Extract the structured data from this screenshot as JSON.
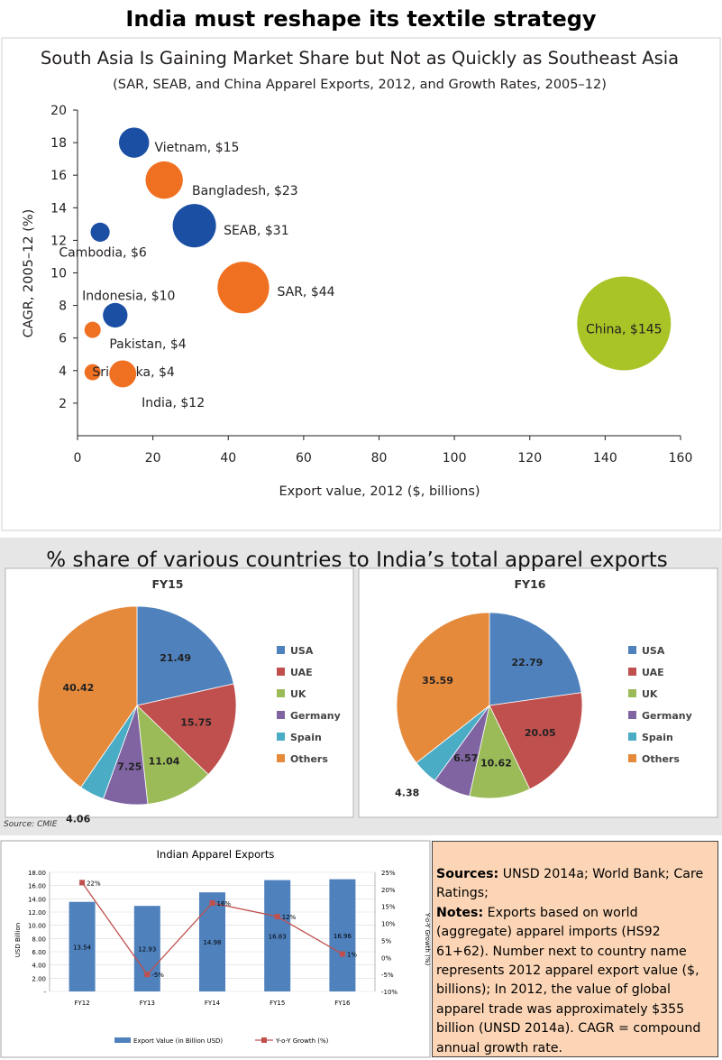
{
  "headline": "India must reshape its textile strategy",
  "chart_data": [
    {
      "type": "scatter",
      "title": "South Asia Is Gaining Market Share but Not as Quickly as Southeast Asia",
      "subtitle": "(SAR, SEAB, and China Apparel Exports, 2012, and Growth Rates, 2005–12)",
      "xlabel": "Export value, 2012 ($, billions)",
      "ylabel": "CAGR, 2005–12 (%)",
      "xlim": [
        0,
        160
      ],
      "ylim": [
        0,
        20
      ],
      "xticks": [
        "0",
        "20",
        "40",
        "60",
        "80",
        "100",
        "120",
        "140",
        "160"
      ],
      "yticks": [
        "2",
        "4",
        "6",
        "8",
        "10",
        "12",
        "14",
        "16",
        "18",
        "20"
      ],
      "points": [
        {
          "label": "Vietnam, $15",
          "x": 15,
          "y": 18.0,
          "color": "#1a4fa3"
        },
        {
          "label": "Bangladesh, $23",
          "x": 23,
          "y": 15.7,
          "color": "#f07022"
        },
        {
          "label": "SEAB, $31",
          "x": 31,
          "y": 12.9,
          "color": "#1a4fa3"
        },
        {
          "label": "Cambodia, $6",
          "x": 6,
          "y": 12.5,
          "color": "#1a4fa3"
        },
        {
          "label": "SAR, $44",
          "x": 44,
          "y": 9.1,
          "color": "#f07022"
        },
        {
          "label": "Indonesia, $10",
          "x": 10,
          "y": 7.4,
          "color": "#1a4fa3"
        },
        {
          "label": "Pakistan, $4",
          "x": 4,
          "y": 6.5,
          "color": "#f07022"
        },
        {
          "label": "Sri Lanka, $4",
          "x": 4,
          "y": 3.9,
          "color": "#f07022"
        },
        {
          "label": "India, $12",
          "x": 12,
          "y": 3.8,
          "color": "#f07022"
        },
        {
          "label": "China, $145",
          "x": 145,
          "y": 6.9,
          "color": "#a9c426"
        }
      ]
    },
    {
      "type": "pie",
      "panel_title": "% share of various countries to India’s total apparel exports",
      "source": "Source: CMIE",
      "legend": [
        "USA",
        "UAE",
        "UK",
        "Germany",
        "Spain",
        "Others"
      ],
      "colors": [
        "#4f81bd",
        "#c0504d",
        "#9bbb59",
        "#8064a2",
        "#4bacc6",
        "#e5893b"
      ],
      "pies": [
        {
          "title": "FY15",
          "values": [
            21.49,
            15.75,
            11.04,
            7.25,
            4.06,
            40.42
          ],
          "labels": [
            "21.49",
            "15.75",
            "11.04",
            "7.25",
            "4.06",
            "40.42"
          ]
        },
        {
          "title": "FY16",
          "values": [
            22.79,
            20.05,
            10.62,
            6.57,
            4.38,
            35.59
          ],
          "labels": [
            "22.79",
            "20.05",
            "10.62",
            "6.57",
            "4.38",
            "35.59"
          ]
        }
      ]
    },
    {
      "type": "bar",
      "title": "Indian Apparel Exports",
      "categories": [
        "FY12",
        "FY13",
        "FY14",
        "FY15",
        "FY16"
      ],
      "series": [
        {
          "name": "Export Value (in Billion USD)",
          "values": [
            13.54,
            12.93,
            14.98,
            16.83,
            16.96
          ],
          "labels": [
            "13.54",
            "12.93",
            "14.98",
            "16.83",
            "16.96"
          ],
          "color": "#4f81bd"
        },
        {
          "name": "Y-o-Y Growth (%)",
          "values": [
            22,
            -5,
            16,
            12,
            1
          ],
          "labels": [
            "22%",
            "-5%",
            "16%",
            "12%",
            "1%"
          ],
          "color": "#c0504d",
          "axis": "right"
        }
      ],
      "ylabel": "USD Billion",
      "y2label": "Y-o-Y Growth (%)",
      "ylim": [
        0,
        18
      ],
      "y2lim": [
        -10,
        25
      ],
      "yticks": [
        "18.00",
        "16.00",
        "14.00",
        "12.00",
        "10.00",
        "8.00",
        "6.00",
        "4.00",
        "2.00",
        "-"
      ],
      "y2ticks": [
        "25%",
        "20%",
        "15%",
        "10%",
        "5%",
        "0%",
        "-5%",
        "-10%"
      ]
    }
  ],
  "notes": {
    "sources_label": "Sources:",
    "sources_text": " UNSD 2014a; World Bank; Care Ratings;",
    "notes_label": "Notes:",
    "notes_text": " Exports based on world (aggregate) apparel imports (HS92 61+62). Number next to country name represents 2012 apparel export value ($, billions);  In 2012, the value of global apparel trade was approximately $355 billion (UNSD 2014a). CAGR = compound annual growth rate."
  }
}
